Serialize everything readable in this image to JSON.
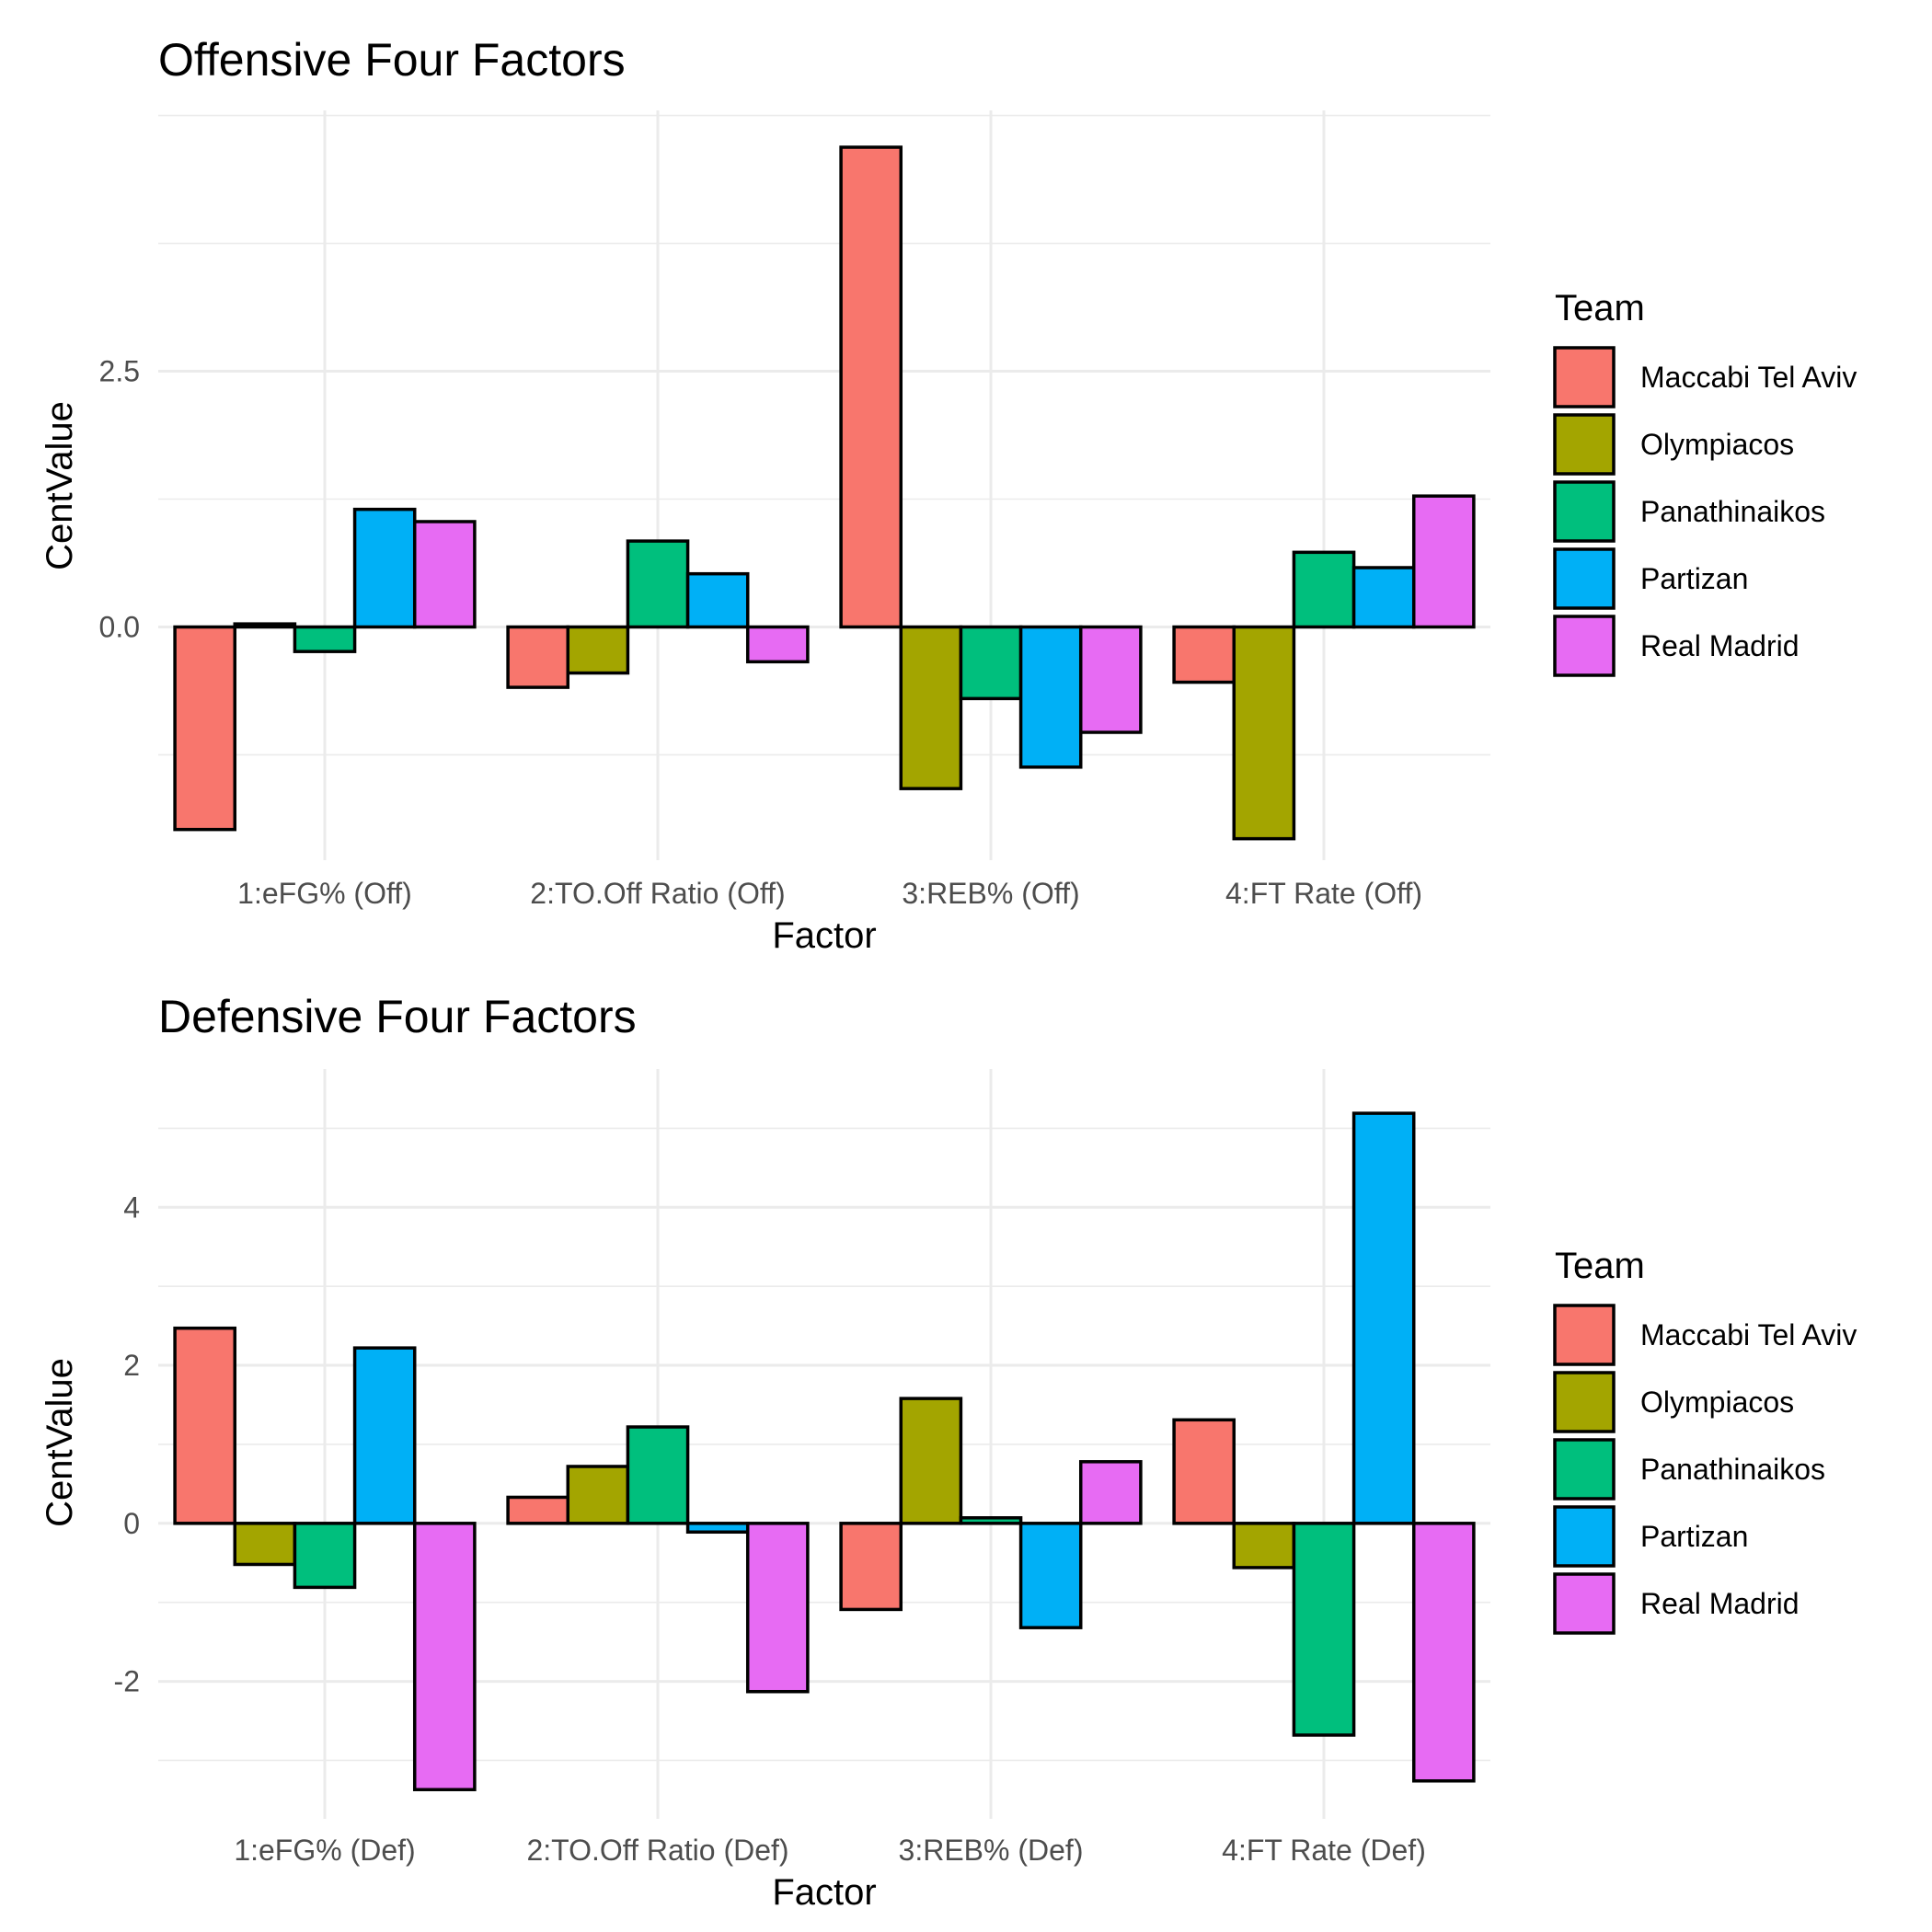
{
  "colors": {
    "Maccabi Tel Aviv": "#F8766D",
    "Olympiacos": "#A3A500",
    "Panathinaikos": "#00BF7D",
    "Partizan": "#00B0F6",
    "Real Madrid": "#E76BF3"
  },
  "chart_data": [
    {
      "type": "bar",
      "title": "Offensive Four Factors",
      "xlabel": "Factor",
      "ylabel": "CentValue",
      "legend_title": "Team",
      "legend_position": "right",
      "grid": true,
      "categories": [
        "1:eFG% (Off)",
        "2:TO.Off Ratio (Off)",
        "3:REB% (Off)",
        "4:FT Rate (Off)"
      ],
      "ylim": [
        -2.28,
        5.05
      ],
      "y_ticks": [
        0,
        2.5
      ],
      "y_tick_labels": [
        "0.0",
        "2.5"
      ],
      "y_minor_ticks": [
        -2.5,
        -1.25,
        1.25,
        3.75,
        5
      ],
      "series": [
        {
          "name": "Maccabi Tel Aviv",
          "values": [
            -1.98,
            -0.59,
            4.69,
            -0.54
          ]
        },
        {
          "name": "Olympiacos",
          "values": [
            0.03,
            -0.45,
            -1.58,
            -2.07
          ]
        },
        {
          "name": "Panathinaikos",
          "values": [
            -0.24,
            0.84,
            -0.7,
            0.73
          ]
        },
        {
          "name": "Partizan",
          "values": [
            1.15,
            0.52,
            -1.37,
            0.58
          ]
        },
        {
          "name": "Real Madrid",
          "values": [
            1.03,
            -0.34,
            -1.03,
            1.28
          ]
        }
      ]
    },
    {
      "type": "bar",
      "title": "Defensive Four Factors",
      "xlabel": "Factor",
      "ylabel": "CentValue",
      "legend_title": "Team",
      "legend_position": "right",
      "grid": true,
      "categories": [
        "1:eFG% (Def)",
        "2:TO.Off Ratio (Def)",
        "3:REB% (Def)",
        "4:FT Rate (Def)"
      ],
      "ylim": [
        -3.74,
        5.75
      ],
      "y_ticks": [
        -2,
        0,
        2,
        4
      ],
      "y_tick_labels": [
        "-2",
        "0",
        "2",
        "4"
      ],
      "y_minor_ticks": [
        -3,
        -1,
        1,
        3,
        5
      ],
      "series": [
        {
          "name": "Maccabi Tel Aviv",
          "values": [
            2.47,
            0.33,
            -1.09,
            1.31
          ]
        },
        {
          "name": "Olympiacos",
          "values": [
            -0.52,
            0.72,
            1.58,
            -0.56
          ]
        },
        {
          "name": "Panathinaikos",
          "values": [
            -0.81,
            1.22,
            0.07,
            -2.68
          ]
        },
        {
          "name": "Partizan",
          "values": [
            2.22,
            -0.11,
            -1.32,
            5.19
          ]
        },
        {
          "name": "Real Madrid",
          "values": [
            -3.37,
            -2.13,
            0.78,
            -3.26
          ]
        }
      ]
    }
  ]
}
